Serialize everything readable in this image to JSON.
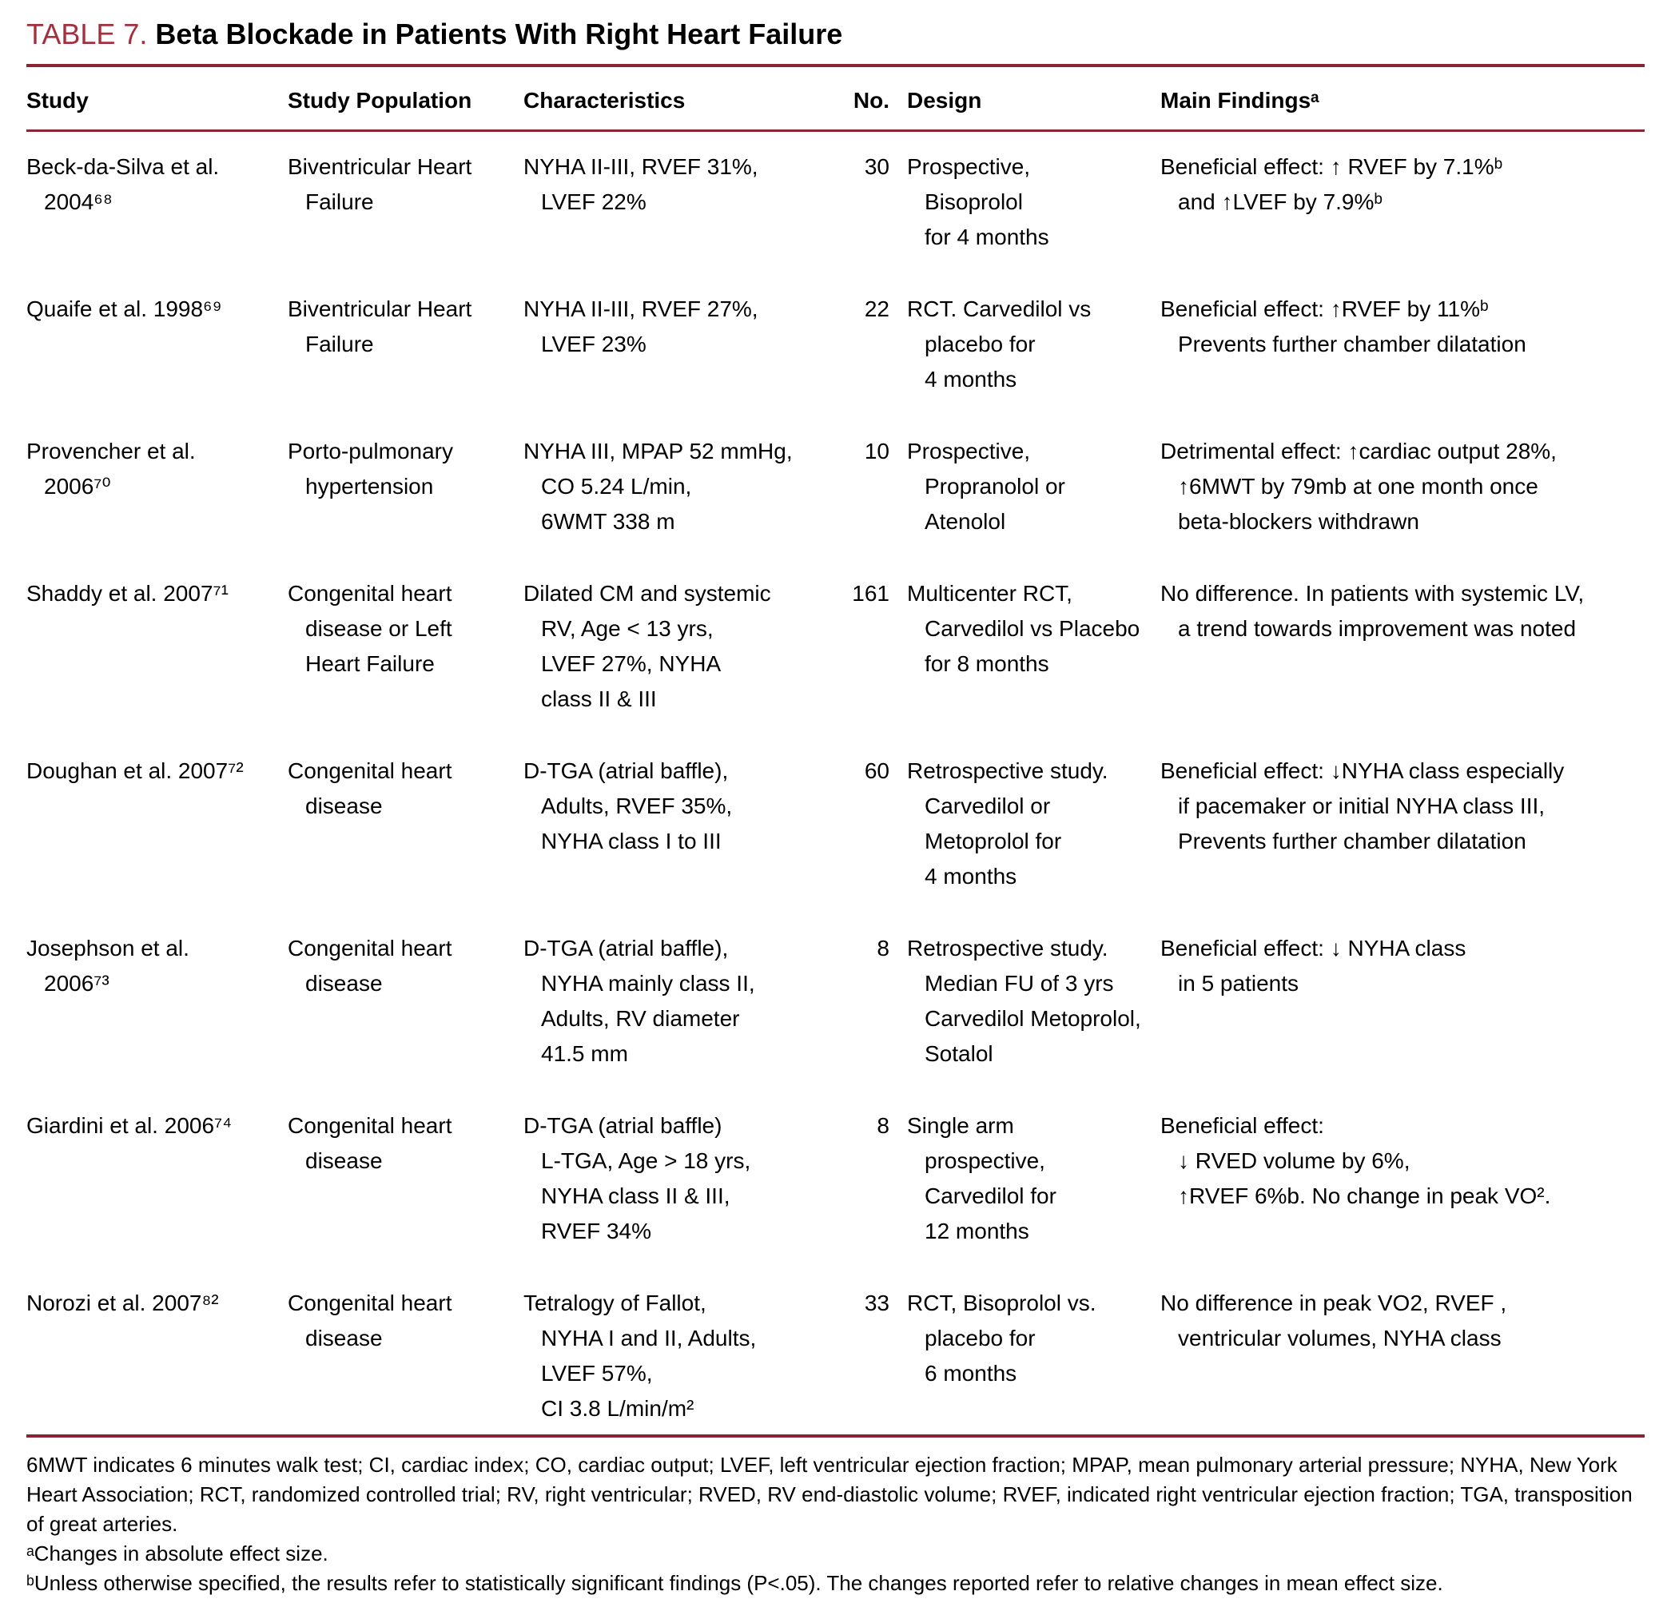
{
  "title": {
    "label": "TABLE 7.",
    "heading": "Beta Blockade in Patients With Right Heart Failure"
  },
  "columns": {
    "study": "Study",
    "population": "Study Population",
    "characteristics": "Characteristics",
    "no": "No.",
    "design": "Design",
    "findings": "Main Findingsᵃ"
  },
  "rows": [
    {
      "study": "Beck-da-Silva et al.\n2004⁶⁸",
      "population": "Biventricular Heart\nFailure",
      "characteristics": "NYHA II-III, RVEF 31%,\nLVEF 22%",
      "no": "30",
      "design": "Prospective,\nBisoprolol\nfor 4 months",
      "findings": "Beneficial effect: ↑ RVEF by 7.1%ᵇ\nand ↑LVEF by 7.9%ᵇ"
    },
    {
      "study": "Quaife et al. 1998⁶⁹",
      "population": "Biventricular Heart\nFailure",
      "characteristics": "NYHA II-III, RVEF 27%,\nLVEF 23%",
      "no": "22",
      "design": "RCT. Carvedilol vs\nplacebo for\n4 months",
      "findings": "Beneficial effect: ↑RVEF by 11%ᵇ\nPrevents further chamber dilatation"
    },
    {
      "study": "Provencher et al.\n2006⁷⁰",
      "population": "Porto-pulmonary\nhypertension",
      "characteristics": "NYHA III, MPAP 52 mmHg,\nCO 5.24 L/min,\n6WMT 338 m",
      "no": "10",
      "design": "Prospective,\nPropranolol or\nAtenolol",
      "findings": "Detrimental effect: ↑cardiac output 28%,\n↑6MWT by 79mb at one month once\nbeta-blockers withdrawn"
    },
    {
      "study": "Shaddy et al. 2007⁷¹",
      "population": "Congenital heart\ndisease or Left\nHeart Failure",
      "characteristics": "Dilated CM and systemic\nRV, Age < 13 yrs,\nLVEF 27%, NYHA\nclass II & III",
      "no": "161",
      "design": "Multicenter RCT,\nCarvedilol vs Placebo\nfor 8 months",
      "findings": "No difference. In patients with systemic LV,\na trend towards improvement was noted"
    },
    {
      "study": "Doughan et al. 2007⁷²",
      "population": "Congenital heart\ndisease",
      "characteristics": "D-TGA (atrial baffle),\nAdults, RVEF 35%,\nNYHA class I to III",
      "no": "60",
      "design": "Retrospective study.\nCarvedilol or\nMetoprolol for\n4 months",
      "findings": "Beneficial effect: ↓NYHA class especially\nif pacemaker or initial NYHA class III,\nPrevents further chamber dilatation"
    },
    {
      "study": "Josephson et al.\n2006⁷³",
      "population": "Congenital heart\ndisease",
      "characteristics": "D-TGA (atrial baffle),\nNYHA mainly class II,\nAdults, RV diameter\n41.5 mm",
      "no": "8",
      "design": "Retrospective study.\nMedian FU of 3 yrs\nCarvedilol Metoprolol,\nSotalol",
      "findings": "Beneficial effect: ↓ NYHA class\nin 5 patients"
    },
    {
      "study": "Giardini et al. 2006⁷⁴",
      "population": "Congenital heart\ndisease",
      "characteristics": "D-TGA (atrial baffle)\nL-TGA, Age > 18 yrs,\nNYHA class II & III,\nRVEF 34%",
      "no": "8",
      "design": "Single arm\nprospective,\nCarvedilol for\n12 months",
      "findings": "Beneficial effect:\n↓ RVED volume by 6%,\n↑RVEF 6%b. No change in peak VO²."
    },
    {
      "study": "Norozi et al. 2007⁸²",
      "population": "Congenital heart\ndisease",
      "characteristics": "Tetralogy of Fallot,\nNYHA I and II, Adults,\nLVEF 57%,\nCI 3.8 L/min/m²",
      "no": "33",
      "design": "RCT, Bisoprolol vs.\nplacebo for\n6 months",
      "findings": "No difference in peak VO2, RVEF ,\nventricular volumes, NYHA class"
    }
  ],
  "footnotes": {
    "abbreviations": "6MWT indicates 6 minutes walk test; CI, cardiac index; CO, cardiac output; LVEF, left ventricular ejection fraction; MPAP, mean pulmonary arterial pressure; NYHA, New York Heart Association; RCT, randomized controlled trial; RV, right ventricular; RVED, RV end-diastolic volume; RVEF, indicated right ventricular ejection fraction; TGA, transposition of great arteries.",
    "note_a": "ᵃChanges in absolute effect size.",
    "note_b": "ᵇUnless otherwise specified, the results refer to statistically significant findings (P<.05). The changes reported refer to relative changes in mean effect size."
  },
  "colors": {
    "accent": "#a42f3f",
    "rule": "#8a2434"
  }
}
